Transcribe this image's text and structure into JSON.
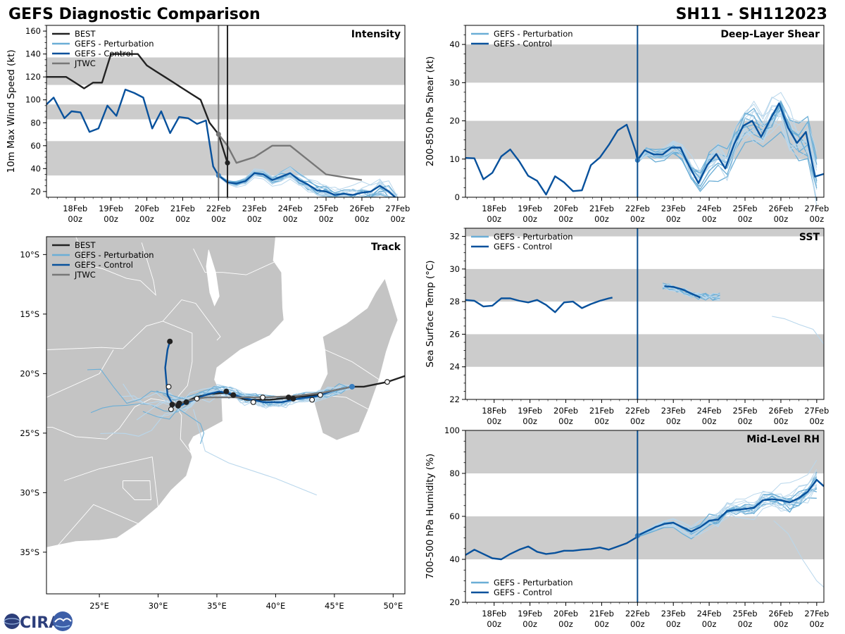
{
  "header": {
    "title": "GEFS Diagnostic Comparison",
    "storm_id": "SH11 - SH112023"
  },
  "logo": {
    "text": "CIRA"
  },
  "colors": {
    "best": "#222222",
    "perturbation": "#6baed6",
    "perturbation_thin": "#b9d7ec",
    "control": "#08519c",
    "jtwc": "#777777",
    "band": "#cccccc",
    "land": "#c4c4c4",
    "init_line": "#0b4f8f"
  },
  "time_axis": {
    "tick_labels": [
      [
        "18Feb",
        "00z"
      ],
      [
        "19Feb",
        "00z"
      ],
      [
        "20Feb",
        "00z"
      ],
      [
        "21Feb",
        "00z"
      ],
      [
        "22Feb",
        "00z"
      ],
      [
        "23Feb",
        "00z"
      ],
      [
        "24Feb",
        "00z"
      ],
      [
        "25Feb",
        "00z"
      ],
      [
        "26Feb",
        "00z"
      ],
      [
        "27Feb",
        "00z"
      ]
    ],
    "range_days": [
      17.2,
      27.2
    ],
    "init_day": 22.0
  },
  "chart_data": [
    {
      "id": "intensity",
      "type": "line",
      "title": "Intensity",
      "ylabel": "10m Max Wind Speed (kt)",
      "ylim": [
        15,
        165
      ],
      "yticks": [
        20,
        40,
        60,
        80,
        100,
        120,
        140,
        160
      ],
      "bands": [
        [
          34,
          64
        ],
        [
          83,
          96
        ],
        [
          113,
          137
        ]
      ],
      "vlines": [
        {
          "x": 22.0,
          "color": "#777777"
        },
        {
          "x": 22.25,
          "color": "#222222"
        }
      ],
      "legend": [
        "BEST",
        "GEFS - Perturbation",
        "GEFS - Control",
        "JTWC"
      ],
      "series": [
        {
          "name": "BEST",
          "style": "best",
          "x": [
            17.2,
            17.5,
            17.75,
            18.0,
            18.25,
            18.5,
            18.75,
            19.0,
            19.25,
            19.5,
            19.75,
            20.0,
            20.25,
            20.5,
            20.75,
            21.0,
            21.25,
            21.5,
            21.75,
            22.0,
            22.25
          ],
          "y": [
            120,
            120,
            120,
            115,
            110,
            115,
            115,
            140,
            140,
            140,
            140,
            130,
            125,
            120,
            115,
            110,
            105,
            100,
            80,
            70,
            45
          ]
        },
        {
          "name": "GEFS - Control",
          "style": "control",
          "x": [
            17.2,
            17.4,
            17.7,
            17.9,
            18.15,
            18.4,
            18.65,
            18.9,
            19.15,
            19.4,
            19.65,
            19.9,
            20.15,
            20.4,
            20.65,
            20.9,
            21.15,
            21.4,
            21.65,
            21.85,
            22.0,
            22.25,
            22.5,
            22.75,
            23.0,
            23.25,
            23.5,
            23.75,
            24.0,
            24.25,
            24.5,
            24.75,
            25.0,
            25.25,
            25.5,
            25.75,
            26.0,
            26.25,
            26.5,
            26.75,
            27.0,
            27.2
          ],
          "y": [
            96,
            102,
            84,
            90,
            89,
            72,
            75,
            95,
            86,
            109,
            106,
            102,
            75,
            90,
            71,
            85,
            84,
            79,
            82,
            42,
            34,
            28,
            27,
            29,
            36,
            35,
            30,
            33,
            36,
            30,
            26,
            21,
            20,
            17,
            18,
            17,
            19,
            20,
            25,
            20,
            13,
            14
          ]
        },
        {
          "name": "JTWC",
          "style": "jtwc",
          "x": [
            22.0,
            22.25,
            22.5,
            23.0,
            23.5,
            24.0,
            25.0,
            26.0
          ],
          "y": [
            70,
            60,
            45,
            50,
            60,
            60,
            35,
            30
          ]
        }
      ],
      "markers": [
        {
          "series": "BEST",
          "x": 22.25,
          "y": 45,
          "color": "#222222"
        },
        {
          "series": "JTWC",
          "x": 22.0,
          "y": 70,
          "color": "#777777"
        },
        {
          "series": "GEFS - Control",
          "x": 22.0,
          "y": 34,
          "color": "#3a7fc0"
        }
      ]
    },
    {
      "id": "shear",
      "type": "line",
      "title": "Deep-Layer Shear",
      "ylabel": "200-850 hPa Shear (kt)",
      "ylim": [
        0,
        45
      ],
      "yticks": [
        0,
        10,
        20,
        30,
        40
      ],
      "bands": [
        [
          10,
          20
        ],
        [
          30,
          40
        ]
      ],
      "vlines": [
        {
          "x": 22.0,
          "color": "#0b4f8f"
        }
      ],
      "legend": [
        "GEFS - Perturbation",
        "GEFS - Control"
      ],
      "series": [
        {
          "name": "GEFS - Control",
          "style": "control",
          "x": [
            17.2,
            17.45,
            17.7,
            17.95,
            18.2,
            18.45,
            18.7,
            18.95,
            19.2,
            19.45,
            19.7,
            19.95,
            20.2,
            20.45,
            20.7,
            20.95,
            21.2,
            21.45,
            21.7,
            21.95,
            22.0,
            22.2,
            22.45,
            22.7,
            22.95,
            23.2,
            23.45,
            23.7,
            23.95,
            24.2,
            24.45,
            24.7,
            24.95,
            25.2,
            25.45,
            25.7,
            25.95,
            26.2,
            26.45,
            26.7,
            26.95,
            27.2
          ],
          "y": [
            10.3,
            10.2,
            4.7,
            6.4,
            10.7,
            12.5,
            9.4,
            5.6,
            4.3,
            0.7,
            5.5,
            3.9,
            1.6,
            1.8,
            8.4,
            10.4,
            13.7,
            17.5,
            19.0,
            12.0,
            9.7,
            12.3,
            11.2,
            11.2,
            13.0,
            13.0,
            8.0,
            3.7,
            8.5,
            11.3,
            7.5,
            14.0,
            18.7,
            20.0,
            15.8,
            20.3,
            24.6,
            18.2,
            14.2,
            17.1,
            5.4,
            6.1
          ]
        }
      ],
      "markers": [
        {
          "series": "GEFS - Control",
          "x": 22.0,
          "y": 9.7,
          "color": "#3a7fc0"
        }
      ]
    },
    {
      "id": "sst",
      "type": "line",
      "title": "SST",
      "ylabel": "Sea Surface Temp (°C)",
      "ylim": [
        22,
        32.5
      ],
      "yticks": [
        22,
        24,
        26,
        28,
        30,
        32
      ],
      "bands": [
        [
          24,
          26
        ],
        [
          28,
          30
        ],
        [
          32,
          32.5
        ]
      ],
      "vlines": [
        {
          "x": 22.0,
          "color": "#0b4f8f"
        }
      ],
      "legend": [
        "GEFS - Perturbation",
        "GEFS - Control"
      ],
      "series": [
        {
          "name": "GEFS - Control",
          "style": "control",
          "x": [
            17.2,
            17.45,
            17.7,
            17.95,
            18.2,
            18.45,
            18.7,
            18.95,
            19.2,
            19.45,
            19.7,
            19.95,
            20.2,
            20.45,
            20.7,
            20.95,
            21.2,
            21.3
          ],
          "y": [
            28.1,
            28.05,
            27.7,
            27.75,
            28.2,
            28.2,
            28.05,
            27.95,
            28.1,
            27.8,
            27.35,
            27.95,
            28.0,
            27.6,
            27.85,
            28.05,
            28.2,
            28.25
          ]
        },
        {
          "name": "GEFS - Control (forecast)",
          "style": "control",
          "x": [
            22.75,
            23.0,
            23.25,
            23.5,
            23.75
          ],
          "y": [
            28.95,
            28.9,
            28.75,
            28.5,
            28.25
          ]
        }
      ],
      "markers": []
    },
    {
      "id": "rh",
      "type": "line",
      "title": "Mid-Level RH",
      "ylabel": "700-500 hPa Humidity (%)",
      "ylim": [
        20,
        100
      ],
      "yticks": [
        20,
        40,
        60,
        80,
        100
      ],
      "bands": [
        [
          40,
          60
        ],
        [
          80,
          100
        ]
      ],
      "vlines": [
        {
          "x": 22.0,
          "color": "#0b4f8f"
        }
      ],
      "legend": [
        "GEFS - Perturbation",
        "GEFS - Control"
      ],
      "series": [
        {
          "name": "GEFS - Control",
          "style": "control",
          "x": [
            17.2,
            17.45,
            17.7,
            17.95,
            18.2,
            18.45,
            18.7,
            18.95,
            19.2,
            19.45,
            19.7,
            19.95,
            20.2,
            20.45,
            20.7,
            20.95,
            21.2,
            21.45,
            21.7,
            21.95,
            22.0,
            22.25,
            22.5,
            22.75,
            23.0,
            23.25,
            23.5,
            23.75,
            24.0,
            24.25,
            24.5,
            24.75,
            25.0,
            25.25,
            25.5,
            25.75,
            26.0,
            26.25,
            26.5,
            26.75,
            27.0,
            27.2
          ],
          "y": [
            42,
            44.5,
            42.5,
            40.5,
            40,
            42.5,
            44.5,
            46,
            43.5,
            42.5,
            43,
            44,
            44,
            44.5,
            44.8,
            45.5,
            44.5,
            46,
            47.5,
            50,
            51,
            53,
            55,
            56.5,
            57,
            55,
            53,
            55,
            58,
            58.5,
            62.5,
            63,
            63.5,
            64,
            67.5,
            68,
            67.5,
            66.5,
            68.5,
            71.5,
            77,
            74
          ]
        }
      ],
      "markers": [
        {
          "series": "GEFS - Control",
          "x": 22.0,
          "y": 51,
          "color": "#3a7fc0"
        }
      ]
    },
    {
      "id": "track",
      "type": "scatter",
      "title": "Track",
      "legend": [
        "BEST",
        "GEFS - Perturbation",
        "GEFS - Control",
        "JTWC"
      ],
      "lon_range": [
        20.5,
        51
      ],
      "lat_range": [
        -38.5,
        -8.5
      ],
      "lon_ticks": [
        "25°E",
        "30°E",
        "35°E",
        "40°E",
        "45°E",
        "50°E"
      ],
      "lon_tick_values": [
        25,
        30,
        35,
        40,
        45,
        50
      ],
      "lat_ticks": [
        "10°S",
        "15°S",
        "20°S",
        "25°S",
        "30°S",
        "35°S"
      ],
      "lat_tick_values": [
        -10,
        -15,
        -20,
        -25,
        -30,
        -35
      ],
      "series": [
        {
          "name": "BEST",
          "style": "best",
          "lon": [
            51.0,
            49.5,
            47.5,
            46.5,
            45.0,
            43.5,
            41.5,
            39.5,
            37.5,
            36.2,
            35.8,
            34.5,
            33.2,
            32.3,
            31.6,
            31.1
          ],
          "lat": [
            -20.2,
            -20.7,
            -21.1,
            -21.1,
            -21.4,
            -21.8,
            -22.0,
            -22.2,
            -22.2,
            -21.8,
            -21.6,
            -21.7,
            -22.0,
            -22.4,
            -22.5,
            -22.8
          ]
        },
        {
          "name": "GEFS - Control",
          "style": "control",
          "lon": [
            46.5,
            45.0,
            43.5,
            42.0,
            40.5,
            39.0,
            37.5,
            36.2,
            35.2,
            34.0,
            32.8,
            31.8,
            31.2,
            30.8,
            30.6,
            30.8,
            31.0
          ],
          "lat": [
            -21.1,
            -21.4,
            -21.9,
            -22.1,
            -22.4,
            -22.4,
            -22.1,
            -21.7,
            -21.5,
            -21.8,
            -22.3,
            -22.7,
            -22.5,
            -21.8,
            -19.5,
            -18.0,
            -17.3
          ]
        },
        {
          "name": "JTWC",
          "style": "jtwc",
          "lon": [
            46.5,
            44.0,
            41.5,
            39.0,
            36.5,
            34.0,
            32.5,
            31.2
          ],
          "lat": [
            -21.1,
            -21.6,
            -21.9,
            -22.0,
            -22.0,
            -22.0,
            -22.3,
            -22.6
          ]
        }
      ],
      "points": [
        {
          "lon": 49.5,
          "lat": -20.7,
          "fill": "white",
          "edge": "#222222"
        },
        {
          "lon": 46.5,
          "lat": -21.1,
          "fill": "#3a7fc0",
          "edge": "#3a7fc0"
        },
        {
          "lon": 43.8,
          "lat": -21.8,
          "fill": "white",
          "edge": "#222222"
        },
        {
          "lon": 43.1,
          "lat": -22.2,
          "fill": "white",
          "edge": "#222222"
        },
        {
          "lon": 41.5,
          "lat": -22.1,
          "fill": "#222222",
          "edge": "#222222"
        },
        {
          "lon": 41.1,
          "lat": -22.0,
          "fill": "#222222",
          "edge": "#222222"
        },
        {
          "lon": 38.9,
          "lat": -22.0,
          "fill": "white",
          "edge": "#222222"
        },
        {
          "lon": 38.1,
          "lat": -22.4,
          "fill": "white",
          "edge": "#222222"
        },
        {
          "lon": 36.4,
          "lat": -21.8,
          "fill": "#222222",
          "edge": "#222222"
        },
        {
          "lon": 35.8,
          "lat": -21.5,
          "fill": "#222222",
          "edge": "#222222"
        },
        {
          "lon": 33.3,
          "lat": -22.1,
          "fill": "white",
          "edge": "#222222"
        },
        {
          "lon": 32.4,
          "lat": -22.4,
          "fill": "#222222",
          "edge": "#222222"
        },
        {
          "lon": 31.8,
          "lat": -22.5,
          "fill": "#222222",
          "edge": "#222222"
        },
        {
          "lon": 31.7,
          "lat": -22.7,
          "fill": "#222222",
          "edge": "#222222"
        },
        {
          "lon": 31.2,
          "lat": -22.6,
          "fill": "#222222",
          "edge": "#222222"
        },
        {
          "lon": 31.1,
          "lat": -23.0,
          "fill": "white",
          "edge": "#222222"
        },
        {
          "lon": 30.9,
          "lat": -21.1,
          "fill": "white",
          "edge": "#222222"
        },
        {
          "lon": 31.0,
          "lat": -17.3,
          "fill": "#222222",
          "edge": "#222222"
        }
      ]
    }
  ]
}
